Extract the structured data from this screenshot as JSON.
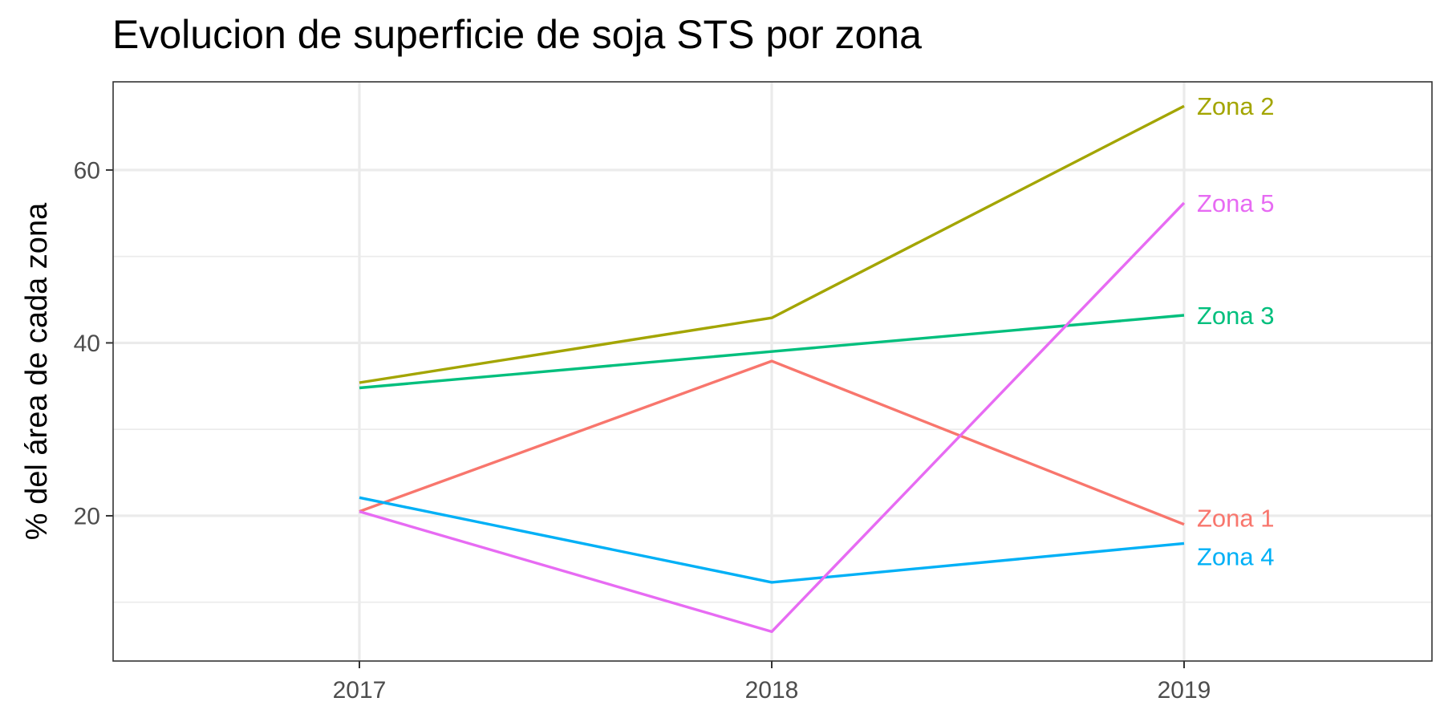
{
  "chart_data": {
    "type": "line",
    "title": "Evolucion de superficie de soja STS por zona",
    "xlabel": "",
    "ylabel": "% del área de cada zona",
    "x": [
      "2017",
      "2018",
      "2019"
    ],
    "ylim": [
      3.2,
      70.2
    ],
    "y_major_ticks": [
      20,
      40,
      60
    ],
    "y_minor_ticks": [
      10,
      30,
      50
    ],
    "grid": true,
    "legend": "direct labels at line ends",
    "series": [
      {
        "name": "Zona 1",
        "color": "#F8766D",
        "values": [
          20.5,
          37.9,
          19.0
        ]
      },
      {
        "name": "Zona 2",
        "color": "#A3A500",
        "values": [
          35.4,
          42.9,
          67.4
        ]
      },
      {
        "name": "Zona 3",
        "color": "#00BF7D",
        "values": [
          34.8,
          39.0,
          43.2
        ]
      },
      {
        "name": "Zona 4",
        "color": "#00B0F6",
        "values": [
          22.1,
          12.3,
          16.8
        ]
      },
      {
        "name": "Zona 5",
        "color": "#E76BF3",
        "values": [
          20.5,
          6.6,
          56.2
        ]
      }
    ]
  }
}
